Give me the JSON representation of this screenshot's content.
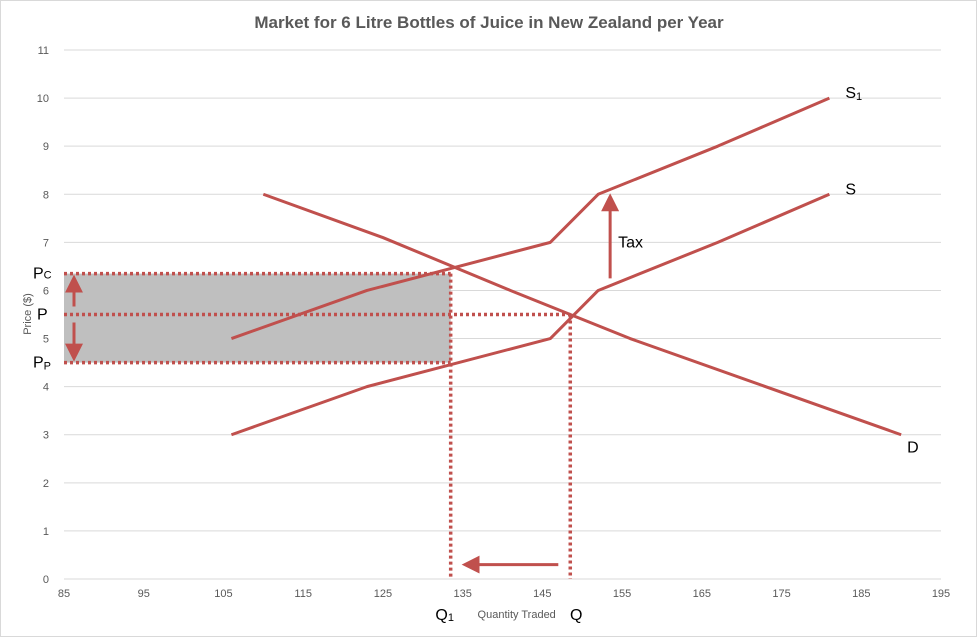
{
  "chart_data": {
    "type": "line",
    "title": "Market for 6 Litre Bottles of Juice in New Zealand per Year",
    "xlabel": "Quantity Traded",
    "ylabel": "Price ($)",
    "xlim": [
      85,
      195
    ],
    "ylim": [
      0,
      11
    ],
    "x_ticks": [
      85,
      95,
      105,
      115,
      125,
      135,
      145,
      155,
      165,
      175,
      185,
      195
    ],
    "y_ticks": [
      0,
      1,
      2,
      3,
      4,
      5,
      6,
      7,
      8,
      9,
      10,
      11
    ],
    "grid": "horizontal",
    "colors": {
      "series": "#c0504d",
      "shade": "#bfbfbf",
      "grid": "#d9d9d9",
      "text": "#595959"
    },
    "series": [
      {
        "name": "S1",
        "points": [
          [
            106,
            5
          ],
          [
            123,
            6
          ],
          [
            146,
            7
          ],
          [
            152,
            8
          ],
          [
            167,
            9
          ],
          [
            181,
            10
          ]
        ]
      },
      {
        "name": "S",
        "points": [
          [
            106,
            3
          ],
          [
            123,
            4
          ],
          [
            146,
            5
          ],
          [
            152,
            6
          ],
          [
            167,
            7
          ],
          [
            181,
            8
          ]
        ]
      },
      {
        "name": "D",
        "points": [
          [
            110,
            8
          ],
          [
            125,
            7.1
          ],
          [
            141,
            6
          ],
          [
            156,
            5
          ],
          [
            190,
            3
          ]
        ]
      }
    ],
    "annotations": {
      "pc_label": "P",
      "pc_sub": "C",
      "p_label": "P",
      "pp_label": "P",
      "pp_sub": "P",
      "q1_label": "Q",
      "q1_sub": "1",
      "q_label": "Q",
      "tax_label": "Tax",
      "s1_label": "S",
      "s1_sub": "1",
      "s_label": "S",
      "d_label": "D"
    },
    "levels": {
      "pc": 6.35,
      "p": 5.5,
      "pp": 4.5,
      "q1": 133.5,
      "q": 148.5,
      "tax_arrow": {
        "x": 153.5,
        "from": 6.25,
        "to": 8.0
      },
      "qty_arrow": {
        "y": 0.3,
        "from": 147,
        "to": 135
      }
    }
  }
}
